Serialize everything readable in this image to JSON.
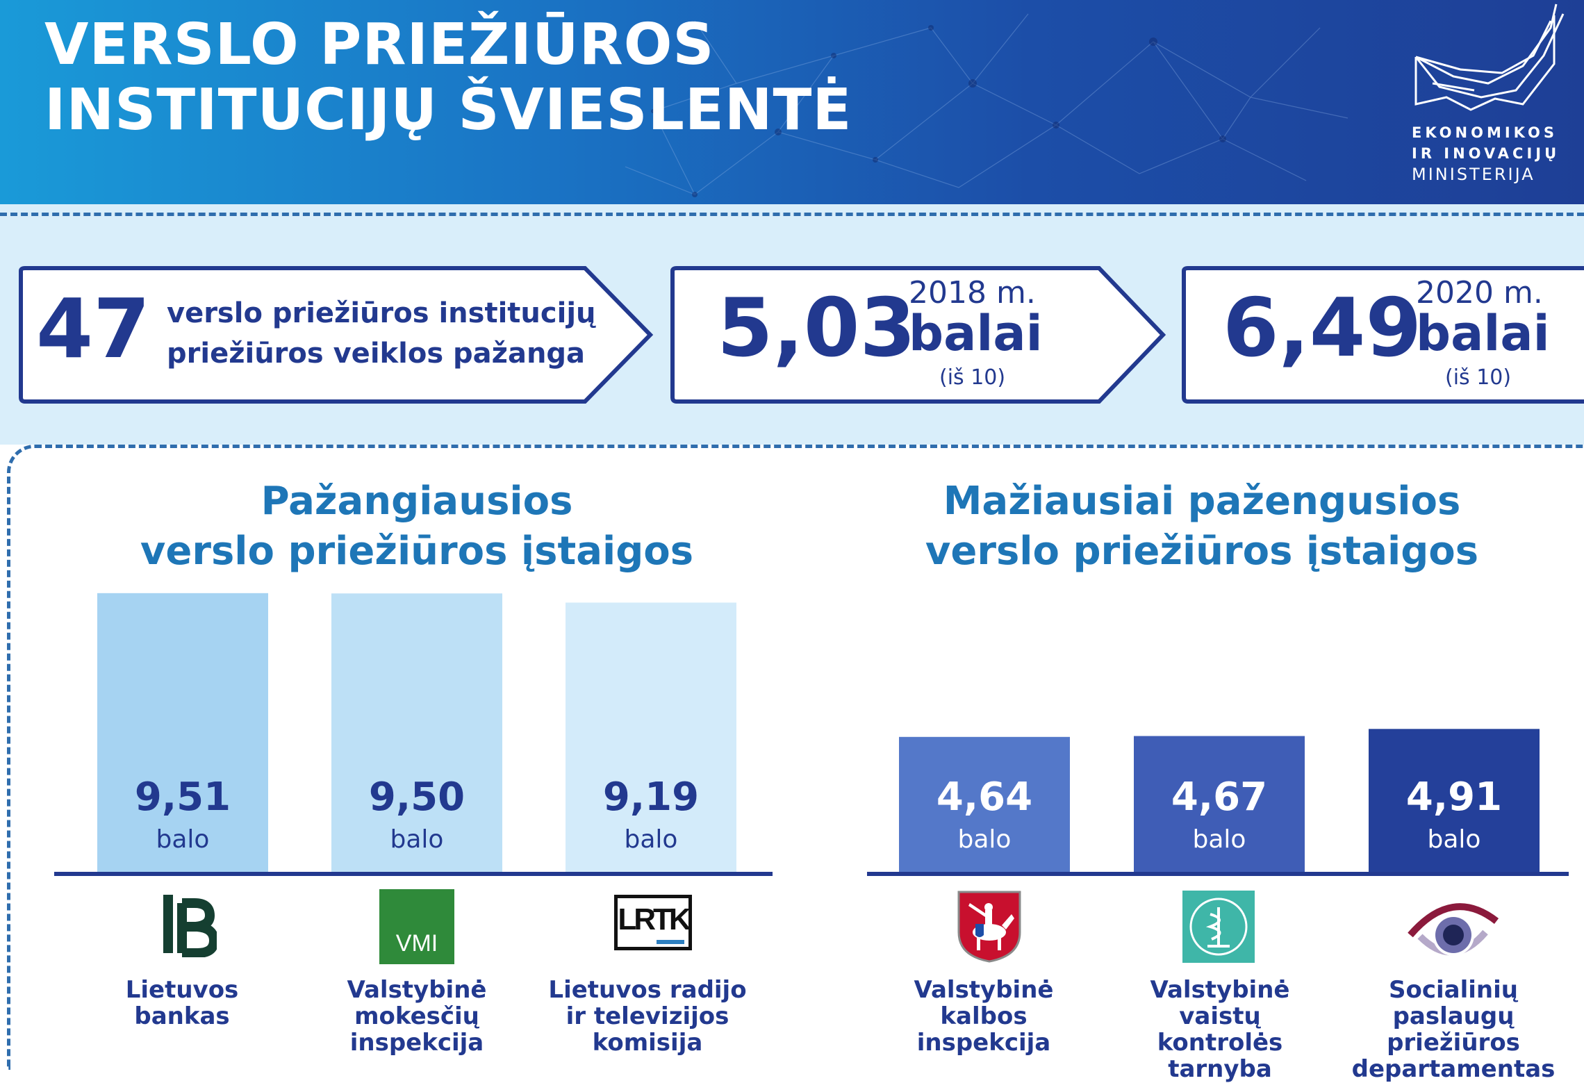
{
  "header": {
    "title_line1": "VERSLO PRIEŽIŪROS",
    "title_line2": "INSTITUCIJŲ ŠVIESLENTĖ",
    "ministry_line1": "EKONOMIKOS",
    "ministry_line2": "IR INOVACIJŲ",
    "ministry_line3": "MINISTERIJA"
  },
  "summary": {
    "count": "47",
    "count_text_line1": "verslo priežiūros institucijų",
    "count_text_line2": "priežiūros veiklos pažanga",
    "score_2018": "5,03",
    "year_2018": "2018 m.",
    "score_2020": "6,49",
    "year_2020": "2020 m.",
    "unit": "balai",
    "scale": "(iš 10)"
  },
  "sections": {
    "best_title_line1": "Pažangiausios",
    "best_title_line2": "verslo priežiūros įstaigos",
    "worst_title_line1": "Mažiausiai pažengusios",
    "worst_title_line2": "verslo priežiūros įstaigos"
  },
  "chart_data": [
    {
      "type": "bar",
      "title": "Pažangiausios verslo priežiūros įstaigos",
      "categories": [
        "Lietuvos bankas",
        "Valstybinė mokesčių inspekcija",
        "Lietuvos radijo ir televizijos komisija"
      ],
      "values": [
        9.51,
        9.5,
        9.19
      ],
      "labels": [
        "9,51",
        "9,50",
        "9,19"
      ],
      "unit": "balo",
      "colors": [
        "#a6d3f2",
        "#bde0f6",
        "#d3ebfa"
      ],
      "ylim": [
        0,
        10
      ]
    },
    {
      "type": "bar",
      "title": "Mažiausiai pažengusios verslo priežiūros įstaigos",
      "categories": [
        "Valstybinė kalbos inspekcija",
        "Valstybinė vaistų kontrolės tarnyba",
        "Socialinių paslaugų priežiūros departamentas"
      ],
      "values": [
        4.64,
        4.67,
        4.91
      ],
      "labels": [
        "4,64",
        "4,67",
        "4,91"
      ],
      "unit": "balo",
      "colors": [
        "#5478c9",
        "#3f5db6",
        "#24409a"
      ],
      "ylim": [
        0,
        10
      ]
    }
  ],
  "institutions": {
    "best": [
      {
        "line1": "Lietuvos",
        "line2": "bankas",
        "line3": ""
      },
      {
        "line1": "Valstybinė",
        "line2": "mokesčių",
        "line3": "inspekcija"
      },
      {
        "line1": "Lietuvos radijo",
        "line2": "ir televizijos",
        "line3": "komisija"
      }
    ],
    "worst": [
      {
        "line1": "Valstybinė",
        "line2": "kalbos inspekcija",
        "line3": ""
      },
      {
        "line1": "Valstybinė vaistų",
        "line2": "kontrolės tarnyba",
        "line3": ""
      },
      {
        "line1": "Socialinių",
        "line2": "paslaugų priežiūros",
        "line3": "departamentas"
      }
    ]
  },
  "logos": {
    "vmi_text": "VMI",
    "lrtk_text": "LRTK",
    "lb_text": "LB"
  }
}
